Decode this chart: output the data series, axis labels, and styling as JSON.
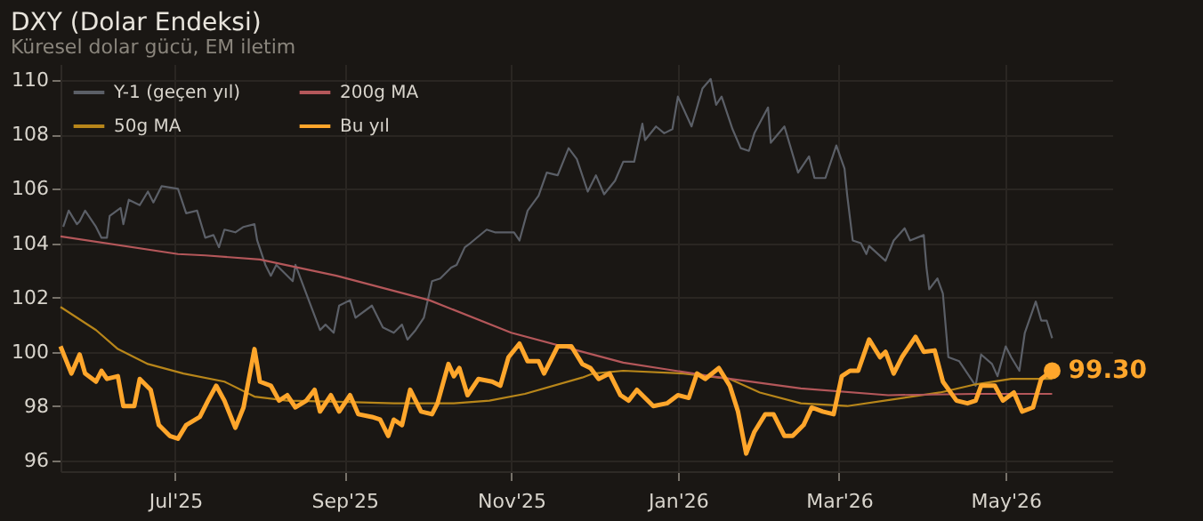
{
  "chart_data": {
    "type": "line",
    "title": "DXY (Dolar Endeksi)",
    "subtitle": "Küresel dolar gücü, EM iletim",
    "xlim": [
      "2025-05-20",
      "2026-06-09"
    ],
    "xticks": [
      {
        "value": "2025-07-01",
        "label": "Jul'25"
      },
      {
        "value": "2025-09-01",
        "label": "Sep'25"
      },
      {
        "value": "2025-11-01",
        "label": "Nov'25"
      },
      {
        "value": "2026-01-01",
        "label": "Jan'26"
      },
      {
        "value": "2026-03-01",
        "label": "Mar'26"
      },
      {
        "value": "2026-05-01",
        "label": "May'26"
      }
    ],
    "ylim": [
      95.6,
      110.6
    ],
    "yticks": [
      96,
      98,
      100,
      102,
      104,
      106,
      108,
      110
    ],
    "grid": true,
    "legend": "top left",
    "marker": "none",
    "line_style": "solid",
    "annotations": [
      {
        "text": "99.30",
        "x": "2026-05-18",
        "y": 99.3
      }
    ],
    "series": [
      {
        "name": "Y-1 (geçen yıl)",
        "color": "#5b5f67",
        "x": [
          "2025-05-21",
          "2025-05-23",
          "2025-05-26",
          "2025-05-27",
          "2025-05-29",
          "2025-06-02",
          "2025-06-04",
          "2025-06-06",
          "2025-06-07",
          "2025-06-11",
          "2025-06-12",
          "2025-06-14",
          "2025-06-18",
          "2025-06-21",
          "2025-06-23",
          "2025-06-26",
          "2025-07-02",
          "2025-07-05",
          "2025-07-09",
          "2025-07-12",
          "2025-07-15",
          "2025-07-17",
          "2025-07-19",
          "2025-07-23",
          "2025-07-26",
          "2025-07-30",
          "2025-07-31",
          "2025-08-03",
          "2025-08-05",
          "2025-08-07",
          "2025-08-13",
          "2025-08-14",
          "2025-08-17",
          "2025-08-20",
          "2025-08-23",
          "2025-08-25",
          "2025-08-28",
          "2025-08-30",
          "2025-09-03",
          "2025-09-05",
          "2025-09-11",
          "2025-09-15",
          "2025-09-19",
          "2025-09-22",
          "2025-09-24",
          "2025-09-27",
          "2025-09-30",
          "2025-10-03",
          "2025-10-06",
          "2025-10-10",
          "2025-10-12",
          "2025-10-15",
          "2025-10-17",
          "2025-10-23",
          "2025-10-26",
          "2025-10-30",
          "2025-11-02",
          "2025-11-04",
          "2025-11-07",
          "2025-11-11",
          "2025-11-14",
          "2025-11-18",
          "2025-11-22",
          "2025-11-25",
          "2025-11-29",
          "2025-12-02",
          "2025-12-05",
          "2025-12-09",
          "2025-12-12",
          "2025-12-16",
          "2025-12-19",
          "2025-12-20",
          "2025-12-24",
          "2025-12-27",
          "2025-12-30",
          "2026-01-01",
          "2026-01-06",
          "2026-01-10",
          "2026-01-13",
          "2026-01-15",
          "2026-01-17",
          "2026-01-21",
          "2026-01-24",
          "2026-01-27",
          "2026-01-29",
          "2026-02-03",
          "2026-02-04",
          "2026-02-09",
          "2026-02-14",
          "2026-02-18",
          "2026-02-20",
          "2026-02-24",
          "2026-02-28",
          "2026-03-03",
          "2026-03-04",
          "2026-03-06",
          "2026-03-09",
          "2026-03-11",
          "2026-03-12",
          "2026-03-18",
          "2026-03-21",
          "2026-03-25",
          "2026-03-27",
          "2026-04-01",
          "2026-04-02",
          "2026-04-03",
          "2026-04-06",
          "2026-04-08",
          "2026-04-10",
          "2026-04-14",
          "2026-04-17",
          "2026-04-20",
          "2026-04-22",
          "2026-04-26",
          "2026-04-28",
          "2026-05-01",
          "2026-05-03",
          "2026-05-06",
          "2026-05-08",
          "2026-05-12",
          "2026-05-14",
          "2026-05-16",
          "2026-05-18"
        ],
        "values": [
          104.6,
          105.2,
          104.7,
          104.8,
          105.2,
          104.6,
          104.2,
          104.2,
          105.0,
          105.3,
          104.7,
          105.6,
          105.4,
          105.9,
          105.5,
          106.1,
          106.0,
          105.1,
          105.2,
          104.2,
          104.3,
          103.85,
          104.5,
          104.4,
          104.6,
          104.7,
          104.1,
          103.2,
          102.8,
          103.2,
          102.6,
          103.2,
          102.4,
          101.6,
          100.8,
          101.0,
          100.7,
          101.7,
          101.9,
          101.25,
          101.7,
          100.9,
          100.7,
          101.0,
          100.45,
          100.8,
          101.25,
          102.6,
          102.7,
          103.1,
          103.2,
          103.85,
          104.0,
          104.5,
          104.4,
          104.4,
          104.4,
          104.1,
          105.2,
          105.75,
          106.6,
          106.5,
          107.5,
          107.1,
          105.9,
          106.5,
          105.8,
          106.3,
          107.0,
          107.0,
          108.4,
          107.8,
          108.3,
          108.05,
          108.2,
          109.4,
          108.3,
          109.7,
          110.05,
          109.1,
          109.4,
          108.2,
          107.5,
          107.4,
          108.05,
          109.0,
          107.7,
          108.3,
          106.6,
          107.2,
          106.4,
          106.4,
          107.6,
          106.75,
          105.75,
          104.1,
          104.0,
          103.6,
          103.9,
          103.35,
          104.1,
          104.55,
          104.1,
          104.3,
          103.1,
          102.3,
          102.7,
          102.15,
          99.8,
          99.65,
          99.2,
          98.75,
          99.9,
          99.55,
          99.1,
          100.2,
          99.8,
          99.3,
          100.7,
          101.85,
          101.15,
          101.15,
          100.5
        ]
      },
      {
        "name": "50g MA",
        "color": "#b8861a",
        "x": [
          "2025-05-20",
          "2025-06-02",
          "2025-06-10",
          "2025-06-21",
          "2025-07-04",
          "2025-07-19",
          "2025-07-30",
          "2025-08-11",
          "2025-09-02",
          "2025-09-19",
          "2025-10-11",
          "2025-10-24",
          "2025-11-06",
          "2025-11-27",
          "2025-12-01",
          "2025-12-12",
          "2026-01-03",
          "2026-01-20",
          "2026-01-31",
          "2026-02-15",
          "2026-03-04",
          "2026-03-21",
          "2026-04-07",
          "2026-04-20",
          "2026-05-03",
          "2026-05-18"
        ],
        "values": [
          101.65,
          100.8,
          100.1,
          99.55,
          99.2,
          98.9,
          98.35,
          98.2,
          98.15,
          98.1,
          98.1,
          98.2,
          98.45,
          99.05,
          99.2,
          99.3,
          99.2,
          99.0,
          98.5,
          98.1,
          98.0,
          98.25,
          98.5,
          98.8,
          99.0,
          99.0
        ]
      },
      {
        "name": "200g MA",
        "color": "#b4575a",
        "x": [
          "2025-05-20",
          "2025-07-02",
          "2025-07-12",
          "2025-08-01",
          "2025-08-29",
          "2025-10-02",
          "2025-11-01",
          "2025-11-27",
          "2025-12-12",
          "2026-01-13",
          "2026-02-15",
          "2026-03-19",
          "2026-04-20",
          "2026-05-18"
        ],
        "values": [
          104.25,
          103.6,
          103.55,
          103.4,
          102.8,
          101.9,
          100.7,
          100.0,
          99.6,
          99.1,
          98.65,
          98.4,
          98.45,
          98.45
        ]
      },
      {
        "name": "Bu yıl",
        "color": "#ffa62b",
        "x": [
          "2025-05-20",
          "2025-05-22",
          "2025-05-24",
          "2025-05-27",
          "2025-05-29",
          "2025-06-02",
          "2025-06-04",
          "2025-06-06",
          "2025-06-10",
          "2025-06-12",
          "2025-06-16",
          "2025-06-18",
          "2025-06-22",
          "2025-06-25",
          "2025-06-29",
          "2025-07-02",
          "2025-07-05",
          "2025-07-10",
          "2025-07-13",
          "2025-07-16",
          "2025-07-19",
          "2025-07-23",
          "2025-07-26",
          "2025-07-30",
          "2025-08-01",
          "2025-08-05",
          "2025-08-08",
          "2025-08-11",
          "2025-08-14",
          "2025-08-18",
          "2025-08-21",
          "2025-08-23",
          "2025-08-27",
          "2025-08-30",
          "2025-09-03",
          "2025-09-06",
          "2025-09-11",
          "2025-09-14",
          "2025-09-17",
          "2025-09-19",
          "2025-09-22",
          "2025-09-25",
          "2025-09-29",
          "2025-10-03",
          "2025-10-05",
          "2025-10-09",
          "2025-10-11",
          "2025-10-13",
          "2025-10-16",
          "2025-10-20",
          "2025-10-25",
          "2025-10-28",
          "2025-10-31",
          "2025-11-04",
          "2025-11-07",
          "2025-11-11",
          "2025-11-13",
          "2025-11-18",
          "2025-11-23",
          "2025-11-27",
          "2025-11-30",
          "2025-12-03",
          "2025-12-07",
          "2025-12-11",
          "2025-12-14",
          "2025-12-17",
          "2025-12-23",
          "2025-12-28",
          "2026-01-01",
          "2026-01-05",
          "2026-01-08",
          "2026-01-11",
          "2026-01-16",
          "2026-01-20",
          "2026-01-23",
          "2026-01-26",
          "2026-01-29",
          "2026-02-02",
          "2026-02-05",
          "2026-02-09",
          "2026-02-12",
          "2026-02-16",
          "2026-02-19",
          "2026-02-23",
          "2026-02-27",
          "2026-03-02",
          "2026-03-05",
          "2026-03-08",
          "2026-03-12",
          "2026-03-16",
          "2026-03-18",
          "2026-03-21",
          "2026-03-24",
          "2026-03-29",
          "2026-04-01",
          "2026-04-05",
          "2026-04-08",
          "2026-04-13",
          "2026-04-17",
          "2026-04-20",
          "2026-04-22",
          "2026-04-27",
          "2026-04-30",
          "2026-05-04",
          "2026-05-07",
          "2026-05-11",
          "2026-05-14",
          "2026-05-18"
        ],
        "values": [
          100.2,
          99.7,
          99.2,
          99.9,
          99.2,
          98.9,
          99.3,
          99.0,
          99.1,
          98.0,
          98.0,
          99.0,
          98.6,
          97.3,
          96.9,
          96.8,
          97.3,
          97.6,
          98.2,
          98.75,
          98.2,
          97.2,
          97.95,
          100.1,
          98.9,
          98.75,
          98.2,
          98.4,
          97.95,
          98.2,
          98.6,
          97.8,
          98.4,
          97.8,
          98.4,
          97.7,
          97.6,
          97.5,
          96.9,
          97.5,
          97.3,
          98.6,
          97.8,
          97.7,
          98.1,
          99.55,
          99.1,
          99.4,
          98.4,
          99.0,
          98.9,
          98.75,
          99.8,
          100.3,
          99.65,
          99.65,
          99.2,
          100.2,
          100.2,
          99.55,
          99.4,
          99.0,
          99.2,
          98.4,
          98.2,
          98.6,
          98.0,
          98.1,
          98.4,
          98.3,
          99.2,
          99.0,
          99.4,
          98.75,
          97.8,
          96.25,
          97.05,
          97.7,
          97.7,
          96.9,
          96.9,
          97.3,
          97.95,
          97.8,
          97.7,
          99.1,
          99.3,
          99.3,
          100.45,
          99.8,
          100.0,
          99.2,
          99.8,
          100.55,
          100.0,
          100.05,
          98.9,
          98.2,
          98.1,
          98.2,
          98.75,
          98.75,
          98.2,
          98.5,
          97.8,
          97.95,
          99.0,
          99.3
        ]
      }
    ]
  }
}
